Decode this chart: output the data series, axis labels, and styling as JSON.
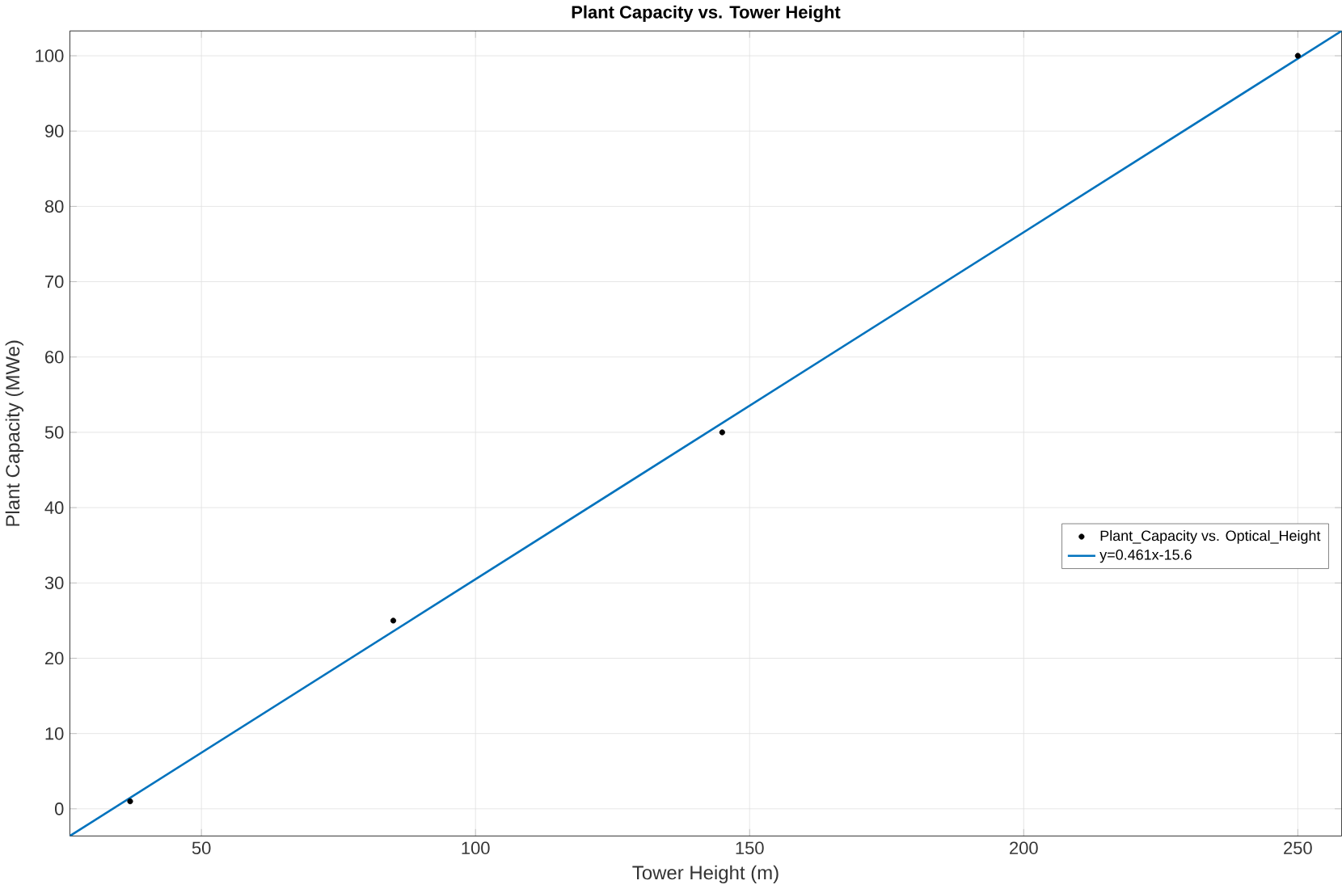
{
  "chart_data": {
    "type": "scatter",
    "title": "Plant Capacity vs. Tower Height",
    "xlabel": "Tower Height (m)",
    "ylabel": "Plant Capacity (MWe)",
    "xlim": [
      26,
      258
    ],
    "ylim": [
      -3.6,
      103.3
    ],
    "xticks": [
      50,
      100,
      150,
      200,
      250
    ],
    "yticks": [
      0,
      10,
      20,
      30,
      40,
      50,
      60,
      70,
      80,
      90,
      100
    ],
    "grid": true,
    "legend": "right",
    "marker": "circle",
    "series": [
      {
        "name": "Plant_Capacity vs. Optical_Height",
        "color": "#000000",
        "x": [
          37,
          85,
          145,
          250
        ],
        "values": [
          1,
          25,
          50,
          100
        ]
      },
      {
        "name": "y=0.461x-15.6",
        "type": "line",
        "marker": "none",
        "color": "#0072bd",
        "x": [
          26,
          258
        ],
        "values": [
          -3.6,
          103.3
        ]
      }
    ]
  }
}
